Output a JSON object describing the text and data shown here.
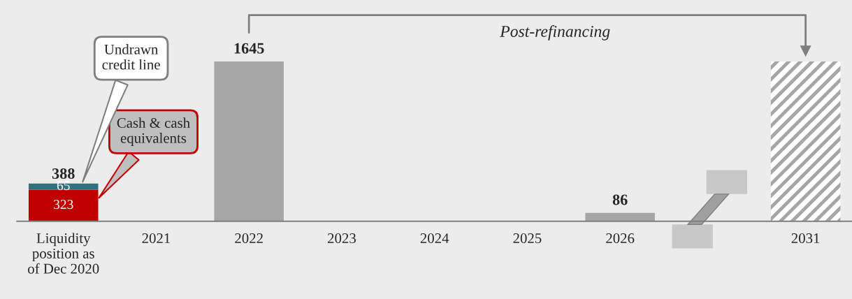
{
  "chart_data": {
    "type": "bar",
    "stacked": true,
    "categories": [
      "Liquidity\nposition as\nof Dec 2020",
      "2021",
      "2022",
      "2023",
      "2024",
      "2025",
      "2026",
      null,
      "2031"
    ],
    "series": [
      {
        "name": "Cash & cash equivalents",
        "color": "#c00000",
        "values": [
          323,
          null,
          null,
          null,
          null,
          null,
          null,
          null,
          null
        ],
        "value_labels": [
          "323",
          null,
          null,
          null,
          null,
          null,
          null,
          null,
          null
        ]
      },
      {
        "name": "Undrawn credit line",
        "color": "#31707f",
        "values": [
          65,
          null,
          null,
          null,
          null,
          null,
          null,
          null,
          null
        ],
        "value_labels": [
          "65",
          null,
          null,
          null,
          null,
          null,
          null,
          null,
          null
        ]
      },
      {
        "color": "#a6a6a6",
        "values": [
          null,
          null,
          1645,
          null,
          null,
          null,
          86,
          null,
          null
        ],
        "value_labels": [
          null,
          null,
          "1645",
          null,
          null,
          null,
          "86",
          null,
          null
        ]
      },
      {
        "color": "#a6a6a6",
        "values": [
          null,
          null,
          null,
          null,
          null,
          null,
          null,
          null,
          1645
        ]
      }
    ],
    "totals": [
      "388",
      null,
      null,
      null,
      null,
      null,
      null,
      null,
      null
    ],
    "annotations": [
      "Post-refinancing"
    ],
    "grid": false,
    "legend": false
  }
}
